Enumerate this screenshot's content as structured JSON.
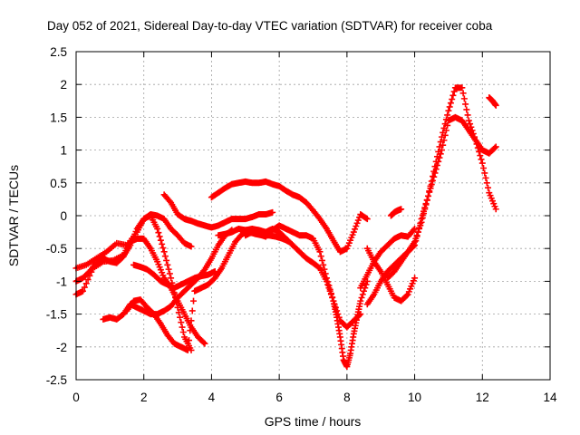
{
  "chart_data": {
    "type": "scatter",
    "title": "Day 052 of 2021, Sidereal Day-to-day VTEC variation (SDTVAR) for receiver coba",
    "xlabel": "GPS time / hours",
    "ylabel": "SDTVAR / TECUs",
    "xlim": [
      0,
      14
    ],
    "ylim": [
      -2.5,
      2.5
    ],
    "xticks": [
      0,
      2,
      4,
      6,
      8,
      10,
      12,
      14
    ],
    "yticks": [
      -2.5,
      -2,
      -1.5,
      -1,
      -0.5,
      0,
      0.5,
      1,
      1.5,
      2,
      2.5
    ],
    "xtick_labels": [
      "0",
      "2",
      "4",
      "6",
      "8",
      "10",
      "12",
      "14"
    ],
    "ytick_labels": [
      "-2.5",
      "-2",
      "-1.5",
      "-1",
      "-0.5",
      "0",
      "0.5",
      "1",
      "1.5",
      "2",
      "2.5"
    ],
    "grid": true,
    "marker": "+",
    "color": "#ff0000",
    "series": [
      {
        "x": [
          0.0,
          0.3,
          0.6,
          0.9,
          1.2,
          1.5,
          1.8,
          2.0,
          2.2,
          2.4,
          2.6,
          2.8,
          3.0,
          3.2,
          3.4
        ],
        "y": [
          -0.8,
          -0.75,
          -0.65,
          -0.55,
          -0.42,
          -0.45,
          -0.25,
          -0.05,
          0.02,
          0.0,
          -0.05,
          -0.2,
          -0.3,
          -0.42,
          -0.47
        ]
      },
      {
        "x": [
          0.0,
          0.2,
          0.5,
          0.8,
          1.1,
          1.4,
          1.6,
          1.8,
          2.0,
          2.2,
          2.4,
          2.6,
          2.8,
          3.0,
          3.2,
          3.4,
          3.6,
          3.8
        ],
        "y": [
          -1.2,
          -1.15,
          -0.8,
          -0.7,
          -0.68,
          -0.6,
          -0.4,
          -0.35,
          -0.35,
          -0.5,
          -0.7,
          -0.95,
          -1.1,
          -1.3,
          -1.5,
          -1.7,
          -1.85,
          -1.95
        ]
      },
      {
        "x": [
          0.0,
          0.2,
          0.4,
          0.6,
          0.8,
          1.0,
          1.2,
          1.4,
          1.6,
          1.8,
          2.0,
          2.2,
          2.4,
          2.6,
          2.8,
          3.0,
          3.2,
          3.4
        ],
        "y": [
          -1.0,
          -0.95,
          -0.85,
          -0.72,
          -0.65,
          -0.7,
          -0.72,
          -0.62,
          -0.45,
          -0.2,
          -0.05,
          0.0,
          -0.2,
          -0.55,
          -0.95,
          -1.4,
          -1.85,
          -2.05
        ]
      },
      {
        "x": [
          0.8,
          1.0,
          1.2,
          1.4,
          1.6,
          1.8,
          2.0,
          2.2,
          2.4,
          2.6,
          2.8,
          3.0,
          3.2,
          3.4,
          3.6,
          3.8,
          4.0,
          4.2,
          4.4,
          4.6
        ],
        "y": [
          -1.58,
          -1.55,
          -1.58,
          -1.5,
          -1.35,
          -1.4,
          -1.45,
          -1.5,
          -1.5,
          -1.45,
          -1.38,
          -1.25,
          -1.15,
          -1.05,
          -0.95,
          -0.82,
          -0.65,
          -0.45,
          -0.3,
          -0.22
        ]
      },
      {
        "x": [
          1.5,
          1.7,
          1.9,
          2.1,
          2.3,
          2.5,
          2.7,
          2.9,
          3.1,
          3.3,
          3.5,
          3.7,
          3.9,
          4.1,
          4.3,
          4.5,
          4.7,
          4.9,
          5.1,
          5.3,
          5.5,
          5.7,
          5.9,
          6.1,
          6.3
        ],
        "y": [
          -1.45,
          -1.3,
          -1.28,
          -1.4,
          -1.5,
          -1.65,
          -1.82,
          -1.95,
          -2.0,
          -2.05,
          -1.15,
          -1.1,
          -1.05,
          -0.95,
          -0.8,
          -0.6,
          -0.4,
          -0.28,
          -0.25,
          -0.28,
          -0.3,
          -0.3,
          -0.32,
          -0.35,
          -0.4
        ]
      },
      {
        "x": [
          1.7,
          1.9,
          2.1,
          2.3,
          2.5,
          2.7,
          2.9,
          3.1,
          3.3,
          3.5,
          3.7,
          3.9,
          4.1
        ],
        "y": [
          -0.75,
          -0.78,
          -0.82,
          -0.9,
          -1.0,
          -1.05,
          -1.1,
          -1.05,
          -1.0,
          -0.95,
          -0.92,
          -0.9,
          -0.85
        ]
      },
      {
        "x": [
          2.6,
          2.8,
          3.0,
          3.2,
          3.4,
          3.6,
          3.8,
          4.0,
          4.2,
          4.4,
          4.6,
          4.8,
          5.0,
          5.2,
          5.4,
          5.6,
          5.8
        ],
        "y": [
          0.32,
          0.2,
          0.02,
          -0.05,
          -0.08,
          -0.12,
          -0.15,
          -0.18,
          -0.15,
          -0.1,
          -0.05,
          -0.05,
          -0.05,
          -0.02,
          0.02,
          0.02,
          0.05
        ]
      },
      {
        "x": [
          4.0,
          4.2,
          4.4,
          4.6,
          4.8,
          5.0,
          5.2,
          5.4,
          5.6,
          5.8,
          6.0,
          6.2,
          6.4,
          6.6,
          6.8,
          7.0,
          7.2,
          7.4,
          7.6,
          7.8,
          8.0,
          8.2,
          8.4,
          8.6
        ],
        "y": [
          0.28,
          0.35,
          0.42,
          0.48,
          0.5,
          0.52,
          0.5,
          0.5,
          0.52,
          0.48,
          0.45,
          0.38,
          0.32,
          0.28,
          0.2,
          0.08,
          -0.05,
          -0.2,
          -0.38,
          -0.55,
          -0.5,
          -0.25,
          0.02,
          -0.05
        ]
      },
      {
        "x": [
          4.2,
          4.4,
          4.6,
          4.8,
          5.0,
          5.2,
          5.4,
          5.6,
          5.8,
          6.0,
          6.2,
          6.4,
          6.6,
          6.8,
          7.0,
          7.2,
          7.4,
          7.6,
          7.8,
          8.0,
          8.2,
          8.4
        ],
        "y": [
          -0.3,
          -0.28,
          -0.25,
          -0.2,
          -0.22,
          -0.2,
          -0.22,
          -0.25,
          -0.2,
          -0.25,
          -0.35,
          -0.45,
          -0.55,
          -0.65,
          -0.72,
          -0.8,
          -1.0,
          -1.3,
          -1.6,
          -1.7,
          -1.6,
          -1.5
        ]
      },
      {
        "x": [
          5.0,
          5.2,
          5.4,
          5.6,
          5.8,
          6.0,
          6.2,
          6.4,
          6.6,
          6.8,
          7.0,
          7.2,
          7.4,
          7.6,
          7.7,
          7.8,
          7.9,
          8.0,
          8.1,
          8.2,
          8.3,
          8.4,
          8.6
        ],
        "y": [
          -0.3,
          -0.25,
          -0.28,
          -0.32,
          -0.22,
          -0.15,
          -0.2,
          -0.25,
          -0.3,
          -0.3,
          -0.35,
          -0.55,
          -0.95,
          -1.3,
          -1.55,
          -1.85,
          -2.2,
          -2.3,
          -2.1,
          -1.8,
          -1.55,
          -1.3,
          -1.0
        ]
      },
      {
        "x": [
          8.4,
          8.6,
          8.8,
          9.0,
          9.2,
          9.4,
          9.6,
          9.8,
          10.0
        ],
        "y": [
          -1.1,
          -0.9,
          -0.7,
          -0.55,
          -0.45,
          -0.35,
          -0.3,
          -0.32,
          -0.2
        ]
      },
      {
        "x": [
          8.6,
          8.8,
          9.0,
          9.2,
          9.4,
          9.6,
          9.8,
          10.0
        ],
        "y": [
          -0.5,
          -0.7,
          -0.85,
          -1.05,
          -1.25,
          -1.3,
          -1.2,
          -0.95
        ]
      },
      {
        "x": [
          8.6,
          8.8,
          9.0,
          9.2,
          9.4,
          9.6,
          9.8,
          10.0,
          10.2,
          10.4,
          10.6,
          10.8,
          11.0,
          11.2,
          11.4,
          11.6,
          11.8,
          12.0,
          12.2,
          12.4
        ],
        "y": [
          -1.35,
          -1.2,
          -1.0,
          -0.85,
          -0.75,
          -0.65,
          -0.55,
          -0.45,
          -0.05,
          0.3,
          0.65,
          1.0,
          1.45,
          1.5,
          1.45,
          1.3,
          1.15,
          1.0,
          0.95,
          1.05
        ]
      },
      {
        "x": [
          9.2,
          9.4,
          9.6,
          9.8,
          10.0,
          10.2,
          10.4,
          10.6,
          10.8,
          11.0,
          11.2,
          11.4,
          11.6,
          11.8,
          12.0,
          12.2,
          12.4
        ],
        "y": [
          -0.95,
          -0.85,
          -0.7,
          -0.55,
          -0.4,
          -0.1,
          0.3,
          0.75,
          1.2,
          1.6,
          1.95,
          1.95,
          1.45,
          1.15,
          0.8,
          0.35,
          0.1
        ]
      },
      {
        "x": [
          9.3,
          9.4,
          9.5,
          9.6
        ],
        "y": [
          0.0,
          0.05,
          0.08,
          0.1
        ]
      },
      {
        "x": [
          12.2,
          12.3,
          12.4
        ],
        "y": [
          1.8,
          1.75,
          1.68
        ]
      }
    ]
  }
}
